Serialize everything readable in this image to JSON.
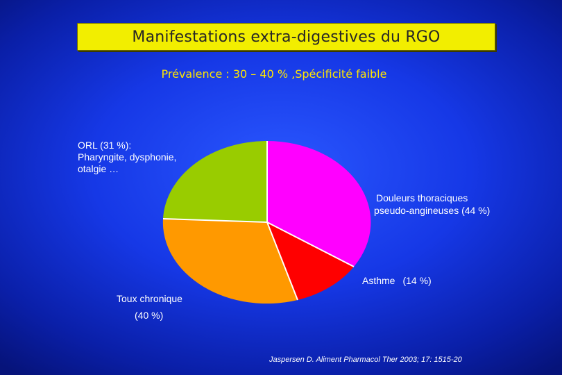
{
  "title": "Manifestations extra-digestives du RGO",
  "subtitle": "Prévalence : 30 – 40 % ,Spécificité faible",
  "colors": {
    "title_bg": "#f2ee00",
    "subtitle": "#ffe600",
    "orl": "#99cc00",
    "douleurs": "#ff00ff",
    "asthme": "#ff0000",
    "toux": "#ff9900"
  },
  "labels": {
    "orl": [
      "ORL (31 %):",
      "Pharyngite, dysphonie,",
      "otalgie …"
    ],
    "douleurs": [
      "Douleurs thoraciques",
      "pseudo-angineuses (44 %)"
    ],
    "asthme_name": "Asthme",
    "asthme_pct": "(14 %)",
    "toux_name": "Toux chronique",
    "toux_pct": "(40 %)"
  },
  "source": "Jaspersen D. Aliment Pharmacol Ther 2003; 17: 1515-20"
}
